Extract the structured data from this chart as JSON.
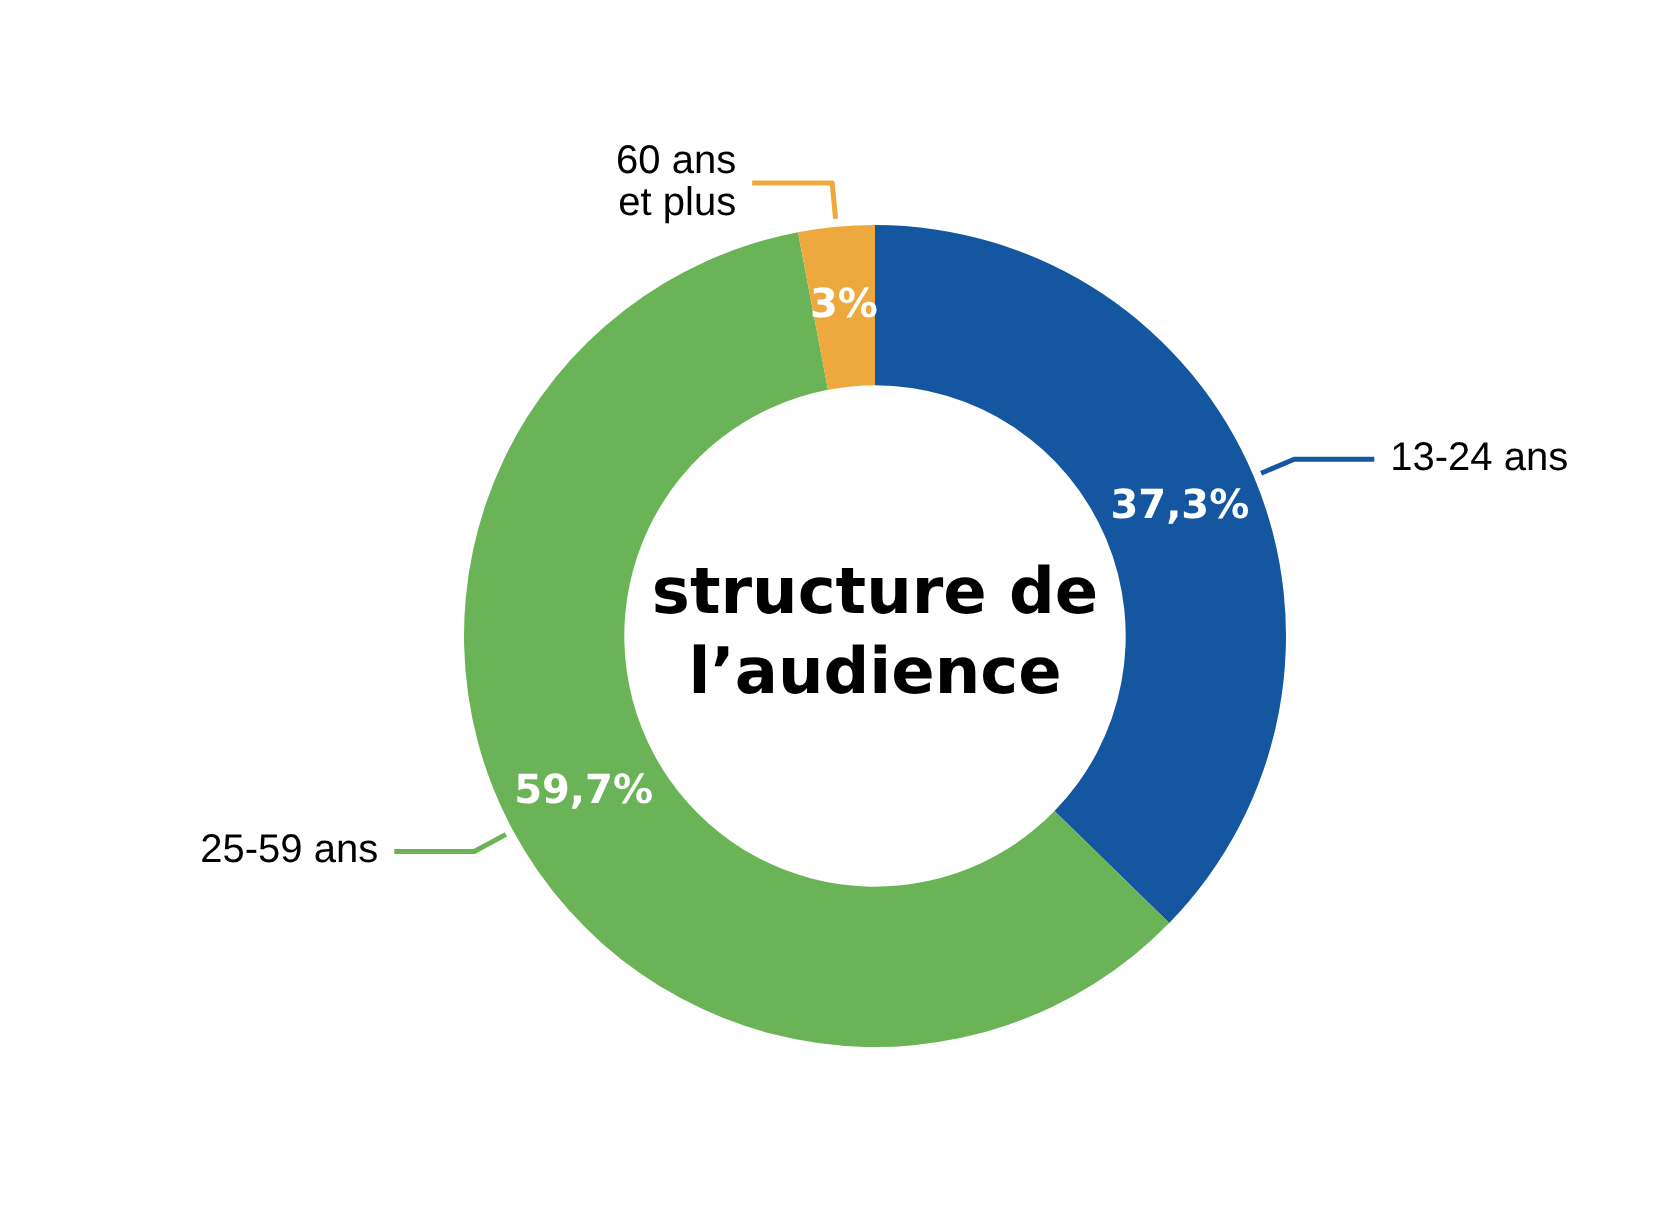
{
  "chart_data": {
    "type": "donut",
    "title": "structure de l’audience",
    "categories": [
      "13-24 ans",
      "25-59 ans",
      "60 ans\net plus"
    ],
    "values": [
      37.3,
      59.7,
      3
    ],
    "colors": [
      "#1457a0",
      "#6ab457",
      "#eda83e"
    ],
    "value_labels": [
      "37,3%",
      "59,7%",
      "3%"
    ],
    "legend": false
  }
}
